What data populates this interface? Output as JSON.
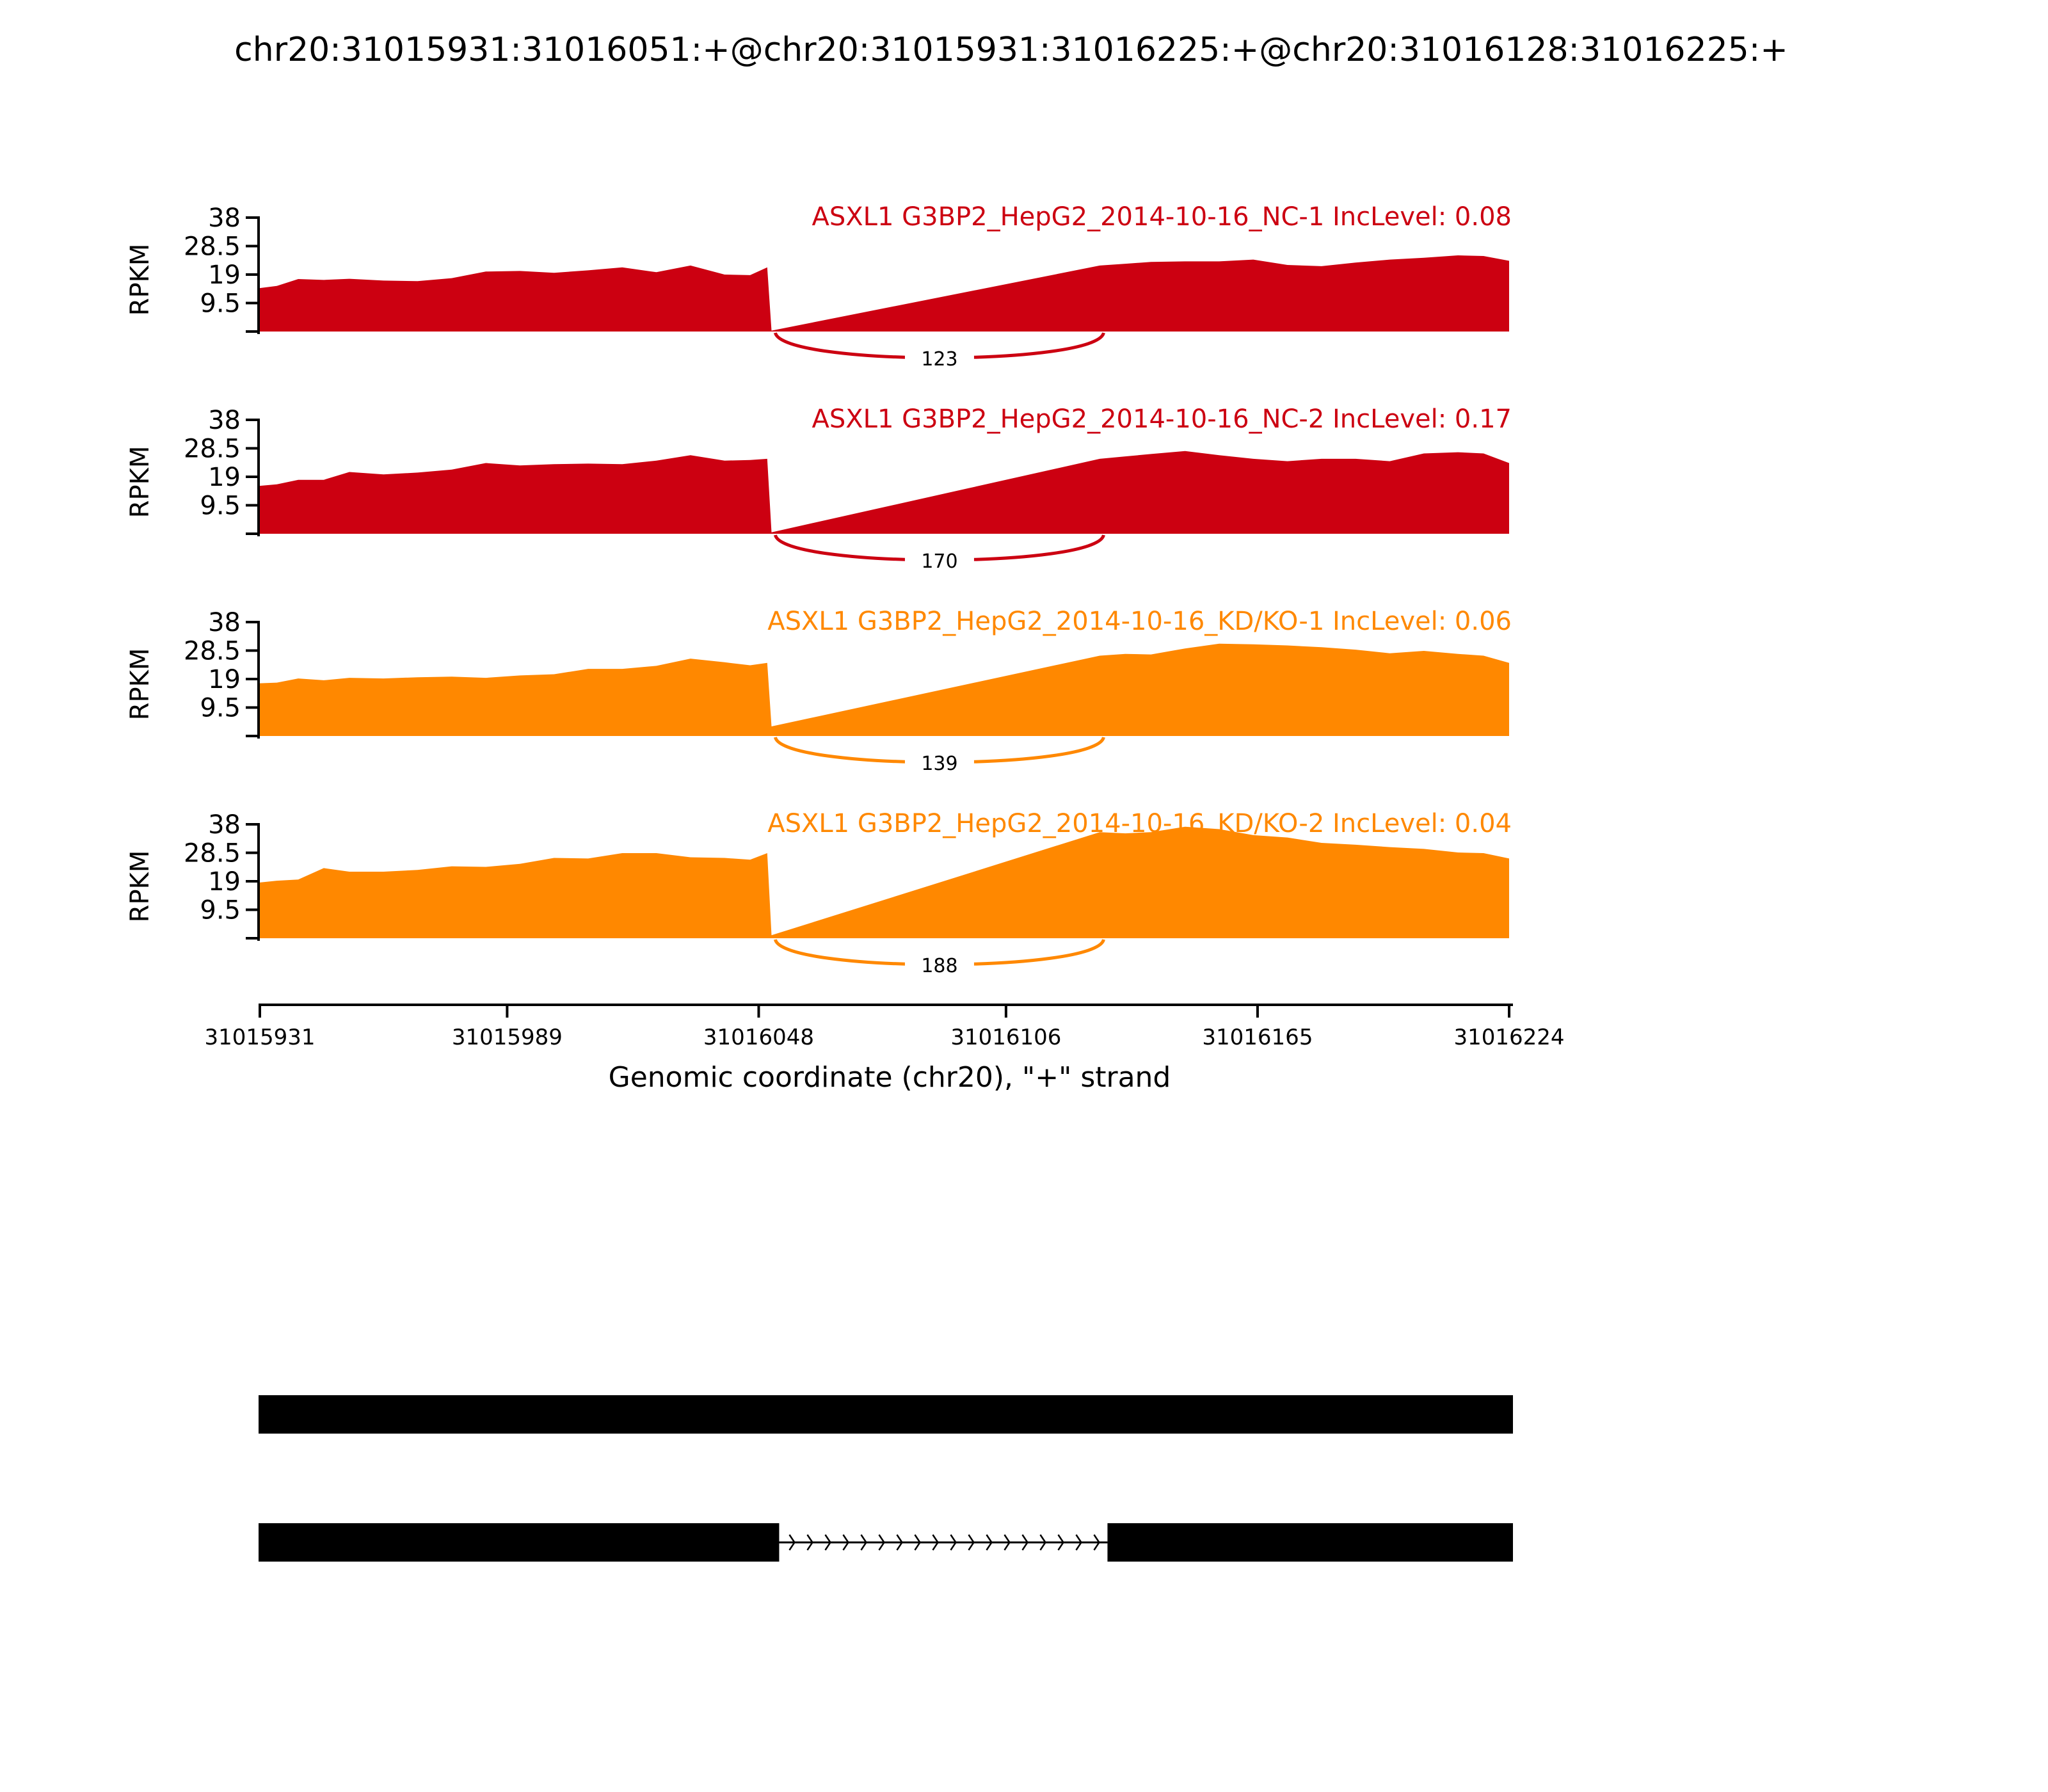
{
  "chart_data": {
    "type": "area",
    "title": "chr20:31015931:31016051:+@chr20:31015931:31016225:+@chr20:31016128:31016225:+",
    "xlabel": "Genomic coordinate (chr20), \"+\" strand",
    "ylabel": "RPKM",
    "xlim": [
      31015931,
      31016224
    ],
    "ylim": [
      0,
      38
    ],
    "x_ticks": [
      "31015931",
      "31015989",
      "31016048",
      "31016106",
      "31016165",
      "31016224"
    ],
    "y_ticks": [
      "38",
      "28.5",
      "19",
      "9.5"
    ],
    "exon_boundaries": [
      31016051,
      31016128
    ],
    "series": [
      {
        "name": "ASXL1 G3BP2_HepG2_2014-10-16_NC-1 IncLevel: 0.08",
        "color": "#cc0011",
        "junction_count": "123",
        "x": [
          31015931,
          31015935,
          31015940,
          31015946,
          31015952,
          31015960,
          31015968,
          31015976,
          31015984,
          31015992,
          31016000,
          31016008,
          31016016,
          31016024,
          31016032,
          31016040,
          31016046,
          31016050,
          31016051,
          31016128,
          31016134,
          31016140,
          31016148,
          31016156,
          31016164,
          31016172,
          31016180,
          31016188,
          31016196,
          31016204,
          31016212,
          31016218,
          31016224
        ],
        "y": [
          14.5,
          15.2,
          17.5,
          17.2,
          17.6,
          17,
          16.8,
          17.8,
          20,
          20.2,
          19.6,
          20.4,
          21.4,
          19.8,
          22,
          19,
          18.8,
          21.4,
          0.3,
          22,
          22.6,
          23.2,
          23.4,
          23.4,
          24,
          22.2,
          21.8,
          23,
          24,
          24.6,
          25.4,
          25.2,
          23.6
        ],
        "intron_y": 0.3
      },
      {
        "name": "ASXL1 G3BP2_HepG2_2014-10-16_NC-2 IncLevel: 0.17",
        "color": "#cc0011",
        "junction_count": "170",
        "x": [
          31015931,
          31015935,
          31015940,
          31015946,
          31015952,
          31015960,
          31015968,
          31015976,
          31015984,
          31015992,
          31016000,
          31016008,
          31016016,
          31016024,
          31016032,
          31016040,
          31016046,
          31016050,
          31016051,
          31016128,
          31016134,
          31016140,
          31016148,
          31016156,
          31016164,
          31016172,
          31016180,
          31016188,
          31016196,
          31016204,
          31016212,
          31016218,
          31016224
        ],
        "y": [
          16,
          16.5,
          18,
          18,
          20.6,
          19.8,
          20.4,
          21.4,
          23.6,
          22.8,
          23.2,
          23.4,
          23.2,
          24.4,
          26.2,
          24.4,
          24.6,
          25,
          0.5,
          25,
          25.8,
          26.6,
          27.6,
          26.2,
          25,
          24.2,
          25,
          25,
          24.2,
          26.8,
          27.2,
          26.8,
          23.6
        ],
        "intron_y": 0.5
      },
      {
        "name": "ASXL1 G3BP2_HepG2_2014-10-16_KD/KO-1 IncLevel: 0.06",
        "color": "#ff8800",
        "junction_count": "139",
        "x": [
          31015931,
          31015935,
          31015940,
          31015946,
          31015952,
          31015960,
          31015968,
          31015976,
          31015984,
          31015992,
          31016000,
          31016008,
          31016016,
          31016024,
          31016032,
          31016040,
          31016046,
          31016050,
          31016051,
          31016128,
          31016134,
          31016140,
          31016148,
          31016156,
          31016164,
          31016172,
          31016180,
          31016188,
          31016196,
          31016204,
          31016212,
          31016218,
          31016224
        ],
        "y": [
          17.6,
          17.8,
          19.2,
          18.6,
          19.4,
          19.2,
          19.6,
          19.8,
          19.4,
          20.2,
          20.6,
          22.4,
          22.4,
          23.4,
          25.8,
          24.6,
          23.6,
          24.4,
          3.2,
          26.8,
          27.4,
          27.2,
          29.2,
          30.8,
          30.6,
          30.2,
          29.6,
          28.8,
          27.6,
          28.4,
          27.4,
          26.8,
          24.4
        ],
        "intron_y": 3.2
      },
      {
        "name": "ASXL1 G3BP2_HepG2_2014-10-16_KD/KO-2 IncLevel: 0.04",
        "color": "#ff8800",
        "junction_count": "188",
        "x": [
          31015931,
          31015935,
          31015940,
          31015946,
          31015952,
          31015960,
          31015968,
          31015976,
          31015984,
          31015992,
          31016000,
          31016008,
          31016016,
          31016024,
          31016032,
          31016040,
          31016046,
          31016050,
          31016051,
          31016128,
          31016134,
          31016140,
          31016148,
          31016156,
          31016164,
          31016172,
          31016180,
          31016188,
          31016196,
          31016204,
          31016212,
          31016218,
          31016224
        ],
        "y": [
          18.6,
          19.2,
          19.6,
          23.4,
          22.2,
          22.2,
          22.8,
          24,
          23.8,
          24.8,
          26.8,
          26.6,
          28.4,
          28.4,
          27,
          26.8,
          26.2,
          28.4,
          1.0,
          35.4,
          35,
          35.4,
          37.2,
          36.4,
          34.4,
          33.6,
          31.8,
          31.2,
          30.4,
          29.8,
          28.6,
          28.4,
          26.6
        ],
        "intron_y": 1.0
      }
    ],
    "isoforms": [
      {
        "type": "full_exon",
        "exons": [
          [
            31015931,
            31016224
          ]
        ]
      },
      {
        "type": "skipping",
        "exons": [
          [
            31015931,
            31016051
          ],
          [
            31016128,
            31016224
          ]
        ]
      }
    ]
  }
}
